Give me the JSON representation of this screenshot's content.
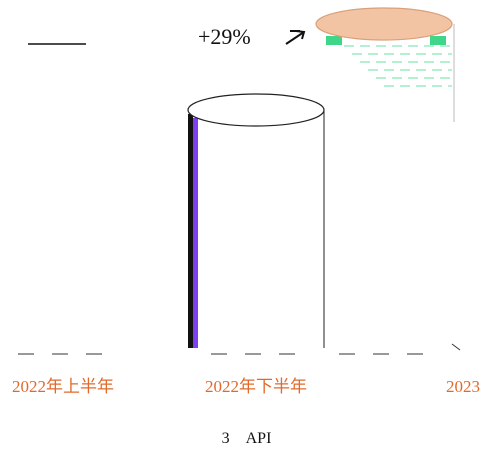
{
  "chart_data": {
    "type": "bar",
    "style": "cylinder",
    "categories": [
      "2022年上半年",
      "2022年下半年",
      "2023"
    ],
    "values": [
      null,
      1.0,
      1.29
    ],
    "annotations": [
      {
        "text": "+29%",
        "between": [
          "2022年下半年",
          "2023"
        ]
      }
    ],
    "grid": false,
    "legend": "none"
  },
  "caption": {
    "number": "3",
    "text": "API"
  },
  "colors": {
    "cylinder_top_orange": "#f3c4a4",
    "cylinder_top_orange_stroke": "#d9a07a",
    "cylinder_edge_dark": "#111111",
    "cylinder_edge_purple": "#7e3ff2",
    "accent_green": "#3fd68a",
    "label_orange": "#e06a2c",
    "baseline": "#333333"
  }
}
